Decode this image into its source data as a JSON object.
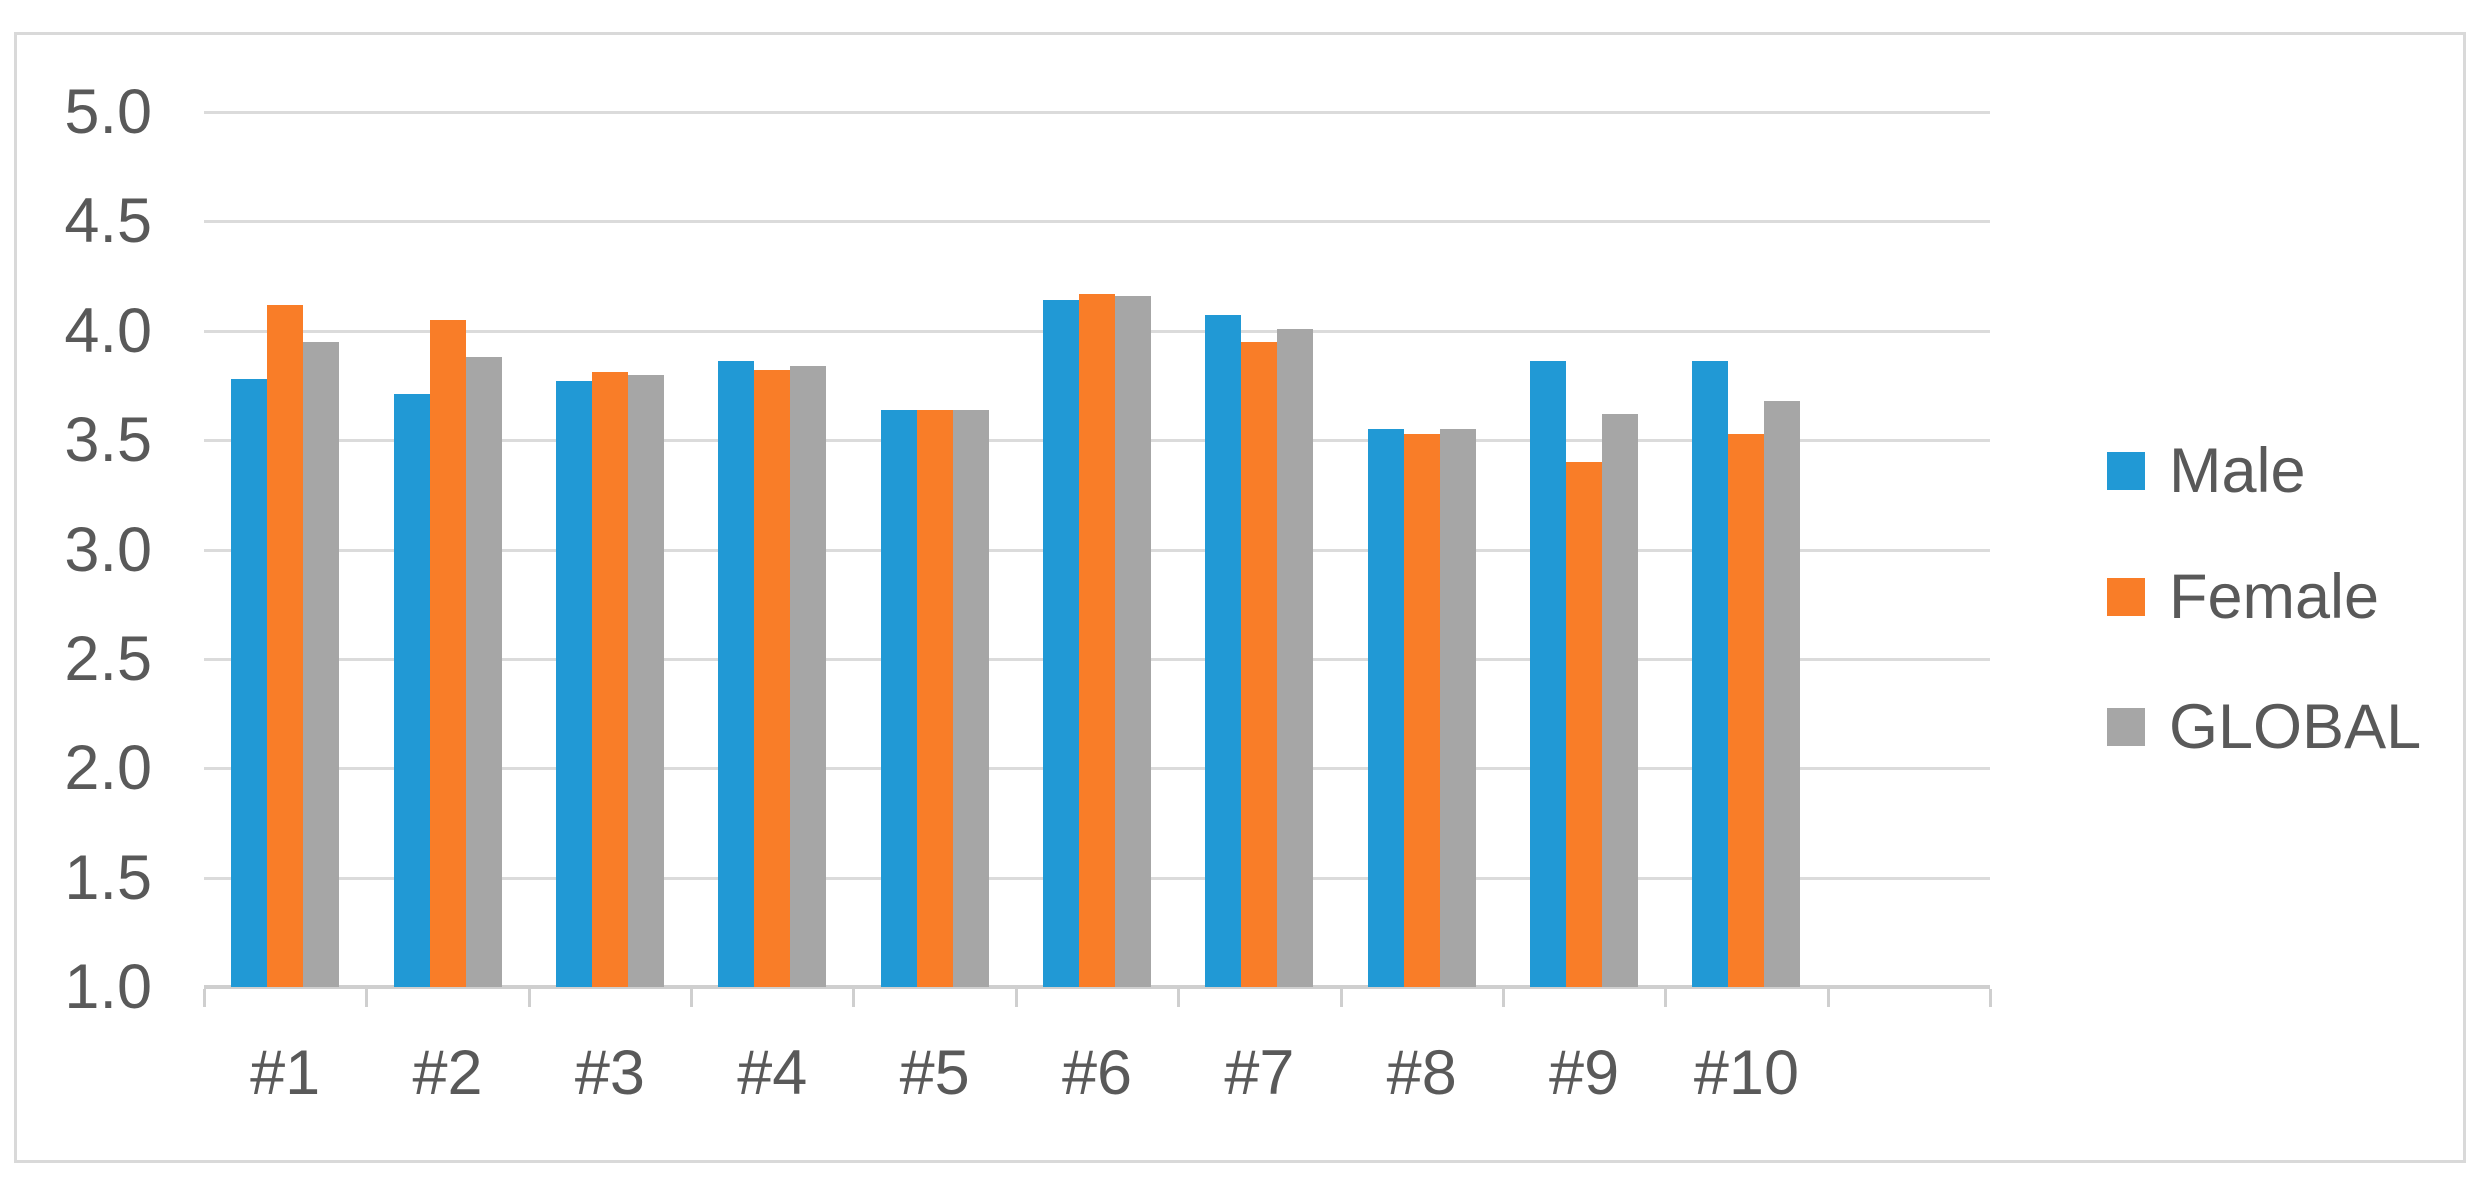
{
  "chart_data": {
    "type": "bar",
    "categories": [
      "#1",
      "#2",
      "#3",
      "#4",
      "#5",
      "#6",
      "#7",
      "#8",
      "#9",
      "#10"
    ],
    "series": [
      {
        "name": "Male",
        "color": "#2199D5",
        "values": [
          3.78,
          3.71,
          3.77,
          3.86,
          3.64,
          4.14,
          4.07,
          3.55,
          3.86,
          3.86
        ]
      },
      {
        "name": "Female",
        "color": "#F97D28",
        "values": [
          4.12,
          4.05,
          3.81,
          3.82,
          3.64,
          4.17,
          3.95,
          3.53,
          3.4,
          3.53
        ]
      },
      {
        "name": "GLOBAL",
        "color": "#A6A6A6",
        "values": [
          3.95,
          3.88,
          3.8,
          3.84,
          3.64,
          4.16,
          4.01,
          3.55,
          3.62,
          3.68
        ]
      }
    ],
    "ylim": [
      1.0,
      5.0
    ],
    "ytick_step": 0.5,
    "ytick_labels": [
      "5.0",
      "4.5",
      "4.0",
      "3.5",
      "3.0",
      "2.5",
      "2.0",
      "1.5",
      "1.0"
    ],
    "grid": "horizontal",
    "legend_position": "right",
    "empty_trailing_categories": 1,
    "colors": {
      "gridline": "#DBDBDB",
      "axis": "#CFCFCF",
      "border": "#D9D9D9",
      "label": "#595959",
      "background": "#FFFFFF"
    }
  }
}
